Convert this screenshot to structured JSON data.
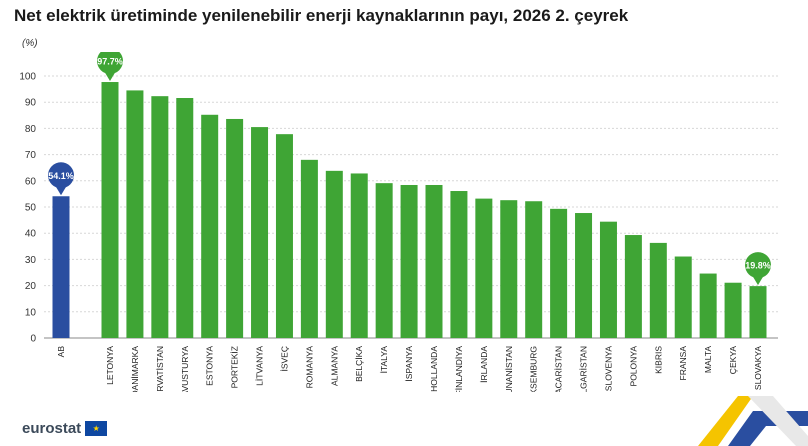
{
  "title": "Net elektrik üretiminde yenilenebilir enerji kaynaklarının payı, 2026 2. çeyrek",
  "unit_label": "(%)",
  "footer": {
    "brand": "eurostat"
  },
  "colors": {
    "eu_bar": "#2a4ea0",
    "country_bar": "#3fa535",
    "grid": "#d7d7d7"
  },
  "icons": {
    "flag": "eu-flag-icon",
    "corner": "eurostat-ribbon-icon"
  },
  "chart_data": {
    "type": "bar",
    "title": "Net elektrik üretiminde yenilenebilir enerji kaynaklarının payı, 2026 2. çeyrek",
    "ylabel": "(%)",
    "ylim": [
      0,
      100
    ],
    "yticks": [
      0,
      10,
      20,
      30,
      40,
      50,
      60,
      70,
      80,
      90,
      100
    ],
    "grid": true,
    "categories": [
      "AB",
      "LETONYA",
      "DANİMARKA",
      "HIRVATİSTAN",
      "AVUSTURYA",
      "ESTONYA",
      "PORTEKİZ",
      "LİTVANYA",
      "İSVEÇ",
      "ROMANYA",
      "ALMANYA",
      "BELÇİKA",
      "İTALYA",
      "İSPANYA",
      "HOLLANDA",
      "FİNLANDİYA",
      "İRLANDA",
      "YUNANİSTAN",
      "LÜKSEMBURG",
      "MACARİSTAN",
      "BULGARİSTAN",
      "SLOVENYA",
      "POLONYA",
      "KIBRIS",
      "FRANSA",
      "MALTA",
      "ÇEKYA",
      "SLOVAKYA"
    ],
    "values": [
      54.1,
      97.7,
      94.5,
      92.3,
      91.6,
      85.2,
      83.6,
      80.5,
      77.8,
      68.0,
      63.8,
      62.8,
      59.1,
      58.4,
      58.4,
      56.1,
      53.2,
      52.6,
      52.2,
      49.3,
      47.7,
      44.4,
      39.3,
      36.3,
      31.1,
      24.6,
      21.1,
      19.8
    ],
    "highlighted": [
      "AB"
    ],
    "annotations": [
      {
        "category": "AB",
        "label": "54.1%",
        "color": "#2a4ea0"
      },
      {
        "category": "LETONYA",
        "label": "97.7%",
        "color": "#3fa535"
      },
      {
        "category": "SLOVAKYA",
        "label": "19.8%",
        "color": "#3fa535"
      }
    ]
  }
}
